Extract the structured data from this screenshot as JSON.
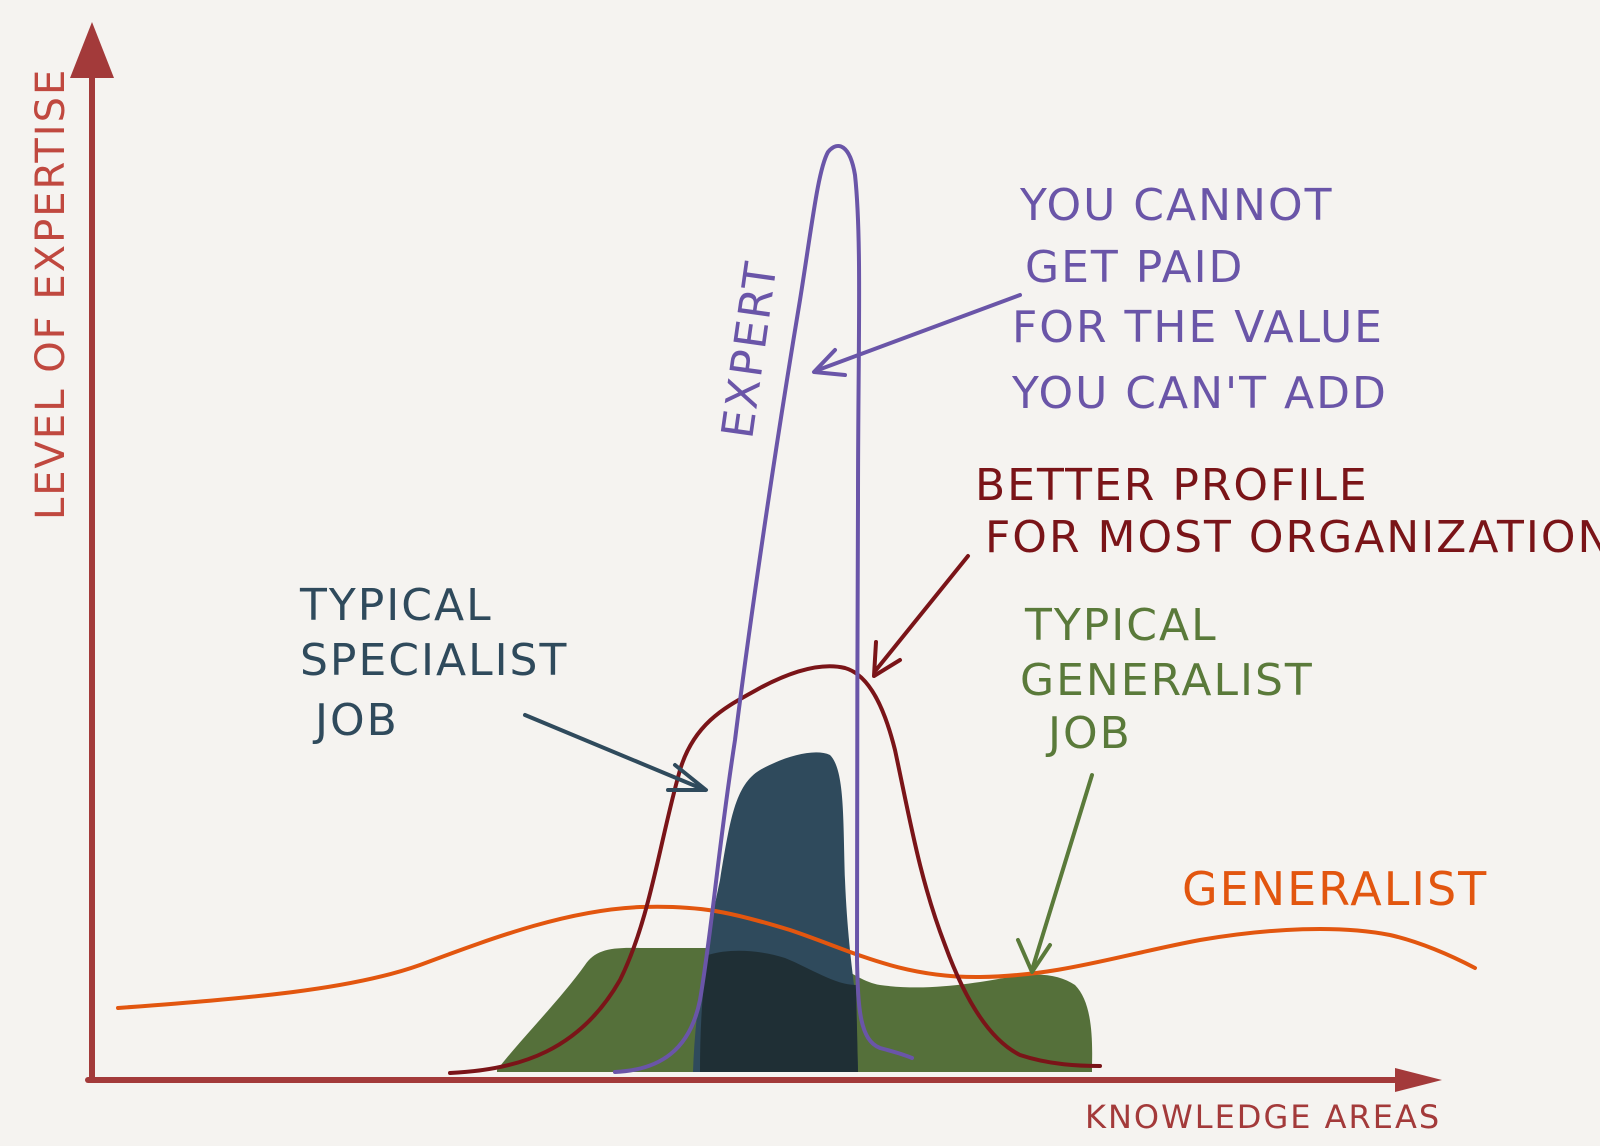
{
  "colors": {
    "background": "#f5f3f0",
    "axis": "#a33a3a",
    "expert": "#6a55a8",
    "better_profile": "#7a1418",
    "generalist": "#e2560f",
    "specialist_job": "#2f4a5c",
    "specialist_job_dark": "#1f2f35",
    "generalist_job": "#55703a",
    "specialist_text": "#2f4a5c",
    "generalist_job_text": "#5a7a3a"
  },
  "axes": {
    "y_label": "LEVEL OF EXPERTISE",
    "x_label": "KNOWLEDGE AREAS"
  },
  "labels": {
    "expert": "EXPERT",
    "generalist": "GENERALIST",
    "cannot_paid": [
      "YOU CANNOT",
      "GET PAID",
      "FOR THE VALUE",
      "YOU CAN'T ADD"
    ],
    "better_profile": [
      "BETTER PROFILE",
      "FOR MOST ORGANIZATIONS"
    ],
    "typical_specialist": [
      "TYPICAL",
      "SPECIALIST",
      "JOB"
    ],
    "typical_generalist": [
      "TYPICAL",
      "GENERALIST",
      "JOB"
    ]
  }
}
